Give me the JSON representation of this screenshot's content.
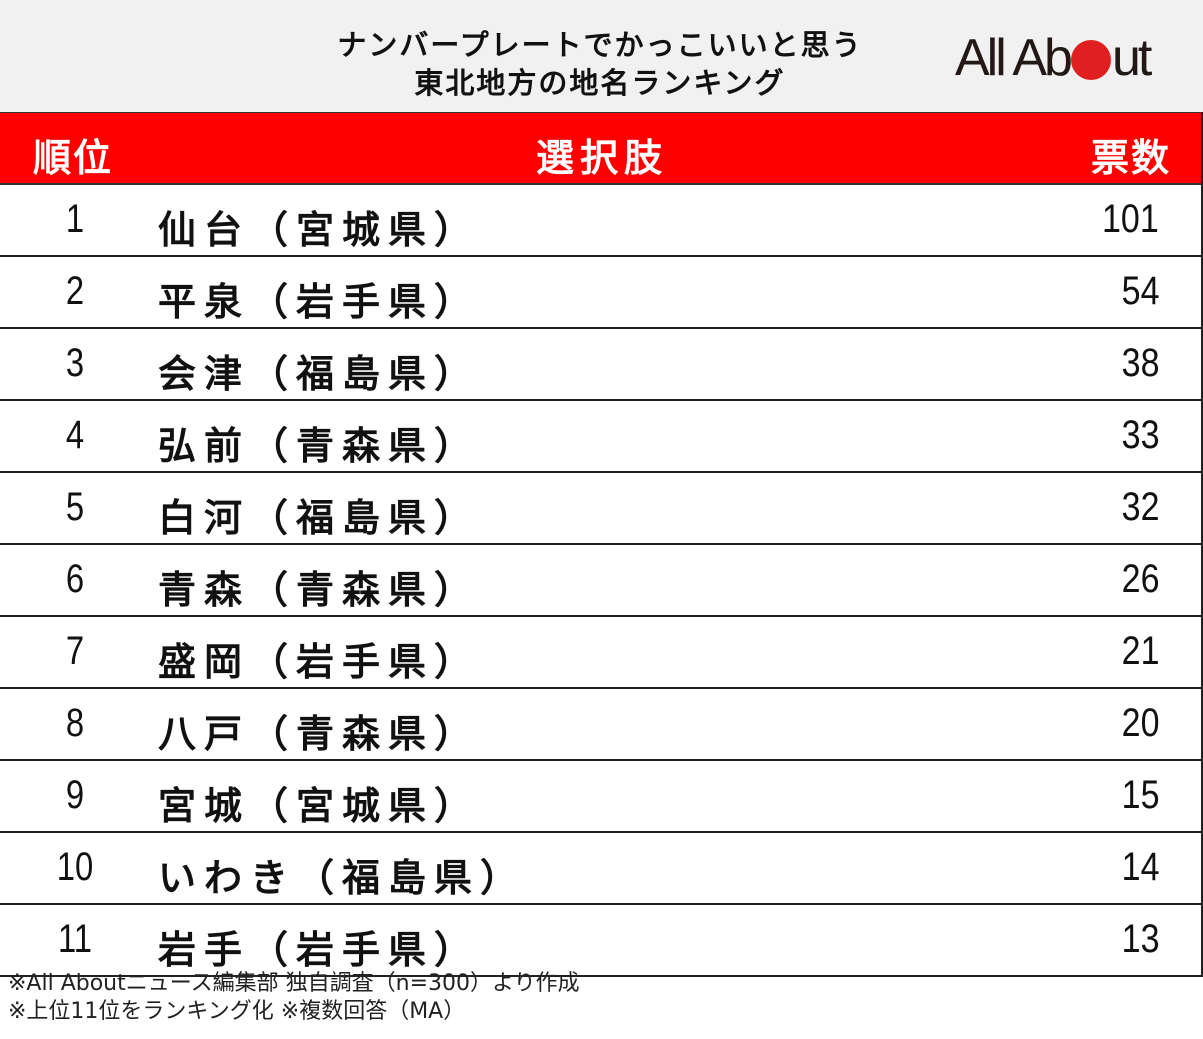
{
  "header": {
    "title_line1": "ナンバープレートでかっこいいと思う",
    "title_line2": "東北地方の地名ランキング",
    "logo": {
      "text_before": "All Ab",
      "text_after": "ut",
      "dot_color": "#e02020"
    }
  },
  "table": {
    "columns": {
      "rank": "順位",
      "choice": "選択肢",
      "votes": "票数"
    },
    "header_color": "#ff0000",
    "rows": [
      {
        "rank": "1",
        "choice": "仙台（宮城県）",
        "votes": "101"
      },
      {
        "rank": "2",
        "choice": "平泉（岩手県）",
        "votes": "54"
      },
      {
        "rank": "3",
        "choice": "会津（福島県）",
        "votes": "38"
      },
      {
        "rank": "4",
        "choice": "弘前（青森県）",
        "votes": "33"
      },
      {
        "rank": "5",
        "choice": "白河（福島県）",
        "votes": "32"
      },
      {
        "rank": "6",
        "choice": "青森（青森県）",
        "votes": "26"
      },
      {
        "rank": "7",
        "choice": "盛岡（岩手県）",
        "votes": "21"
      },
      {
        "rank": "8",
        "choice": "八戸（青森県）",
        "votes": "20"
      },
      {
        "rank": "9",
        "choice": "宮城（宮城県）",
        "votes": "15"
      },
      {
        "rank": "10",
        "choice": "いわき（福島県）",
        "votes": "14"
      },
      {
        "rank": "11",
        "choice": "岩手（岩手県）",
        "votes": "13"
      }
    ]
  },
  "footer": {
    "note1": "※All Aboutニュース編集部 独自調査（n=300）より作成",
    "note2": "※上位11位をランキング化 ※複数回答（MA）"
  },
  "chart_data": {
    "type": "table",
    "title": "ナンバープレートでかっこいいと思う東北地方の地名ランキング",
    "columns": [
      "順位",
      "選択肢",
      "票数"
    ],
    "categories": [
      "仙台（宮城県）",
      "平泉（岩手県）",
      "会津（福島県）",
      "弘前（青森県）",
      "白河（福島県）",
      "青森（青森県）",
      "盛岡（岩手県）",
      "八戸（青森県）",
      "宮城（宮城県）",
      "いわき（福島県）",
      "岩手（岩手県）"
    ],
    "ranks": [
      1,
      2,
      3,
      4,
      5,
      6,
      7,
      8,
      9,
      10,
      11
    ],
    "values": [
      101,
      54,
      38,
      33,
      32,
      26,
      21,
      20,
      15,
      14,
      13
    ],
    "annotations": [
      "※All Aboutニュース編集部 独自調査（n=300）より作成",
      "※上位11位をランキング化 ※複数回答（MA）"
    ]
  }
}
